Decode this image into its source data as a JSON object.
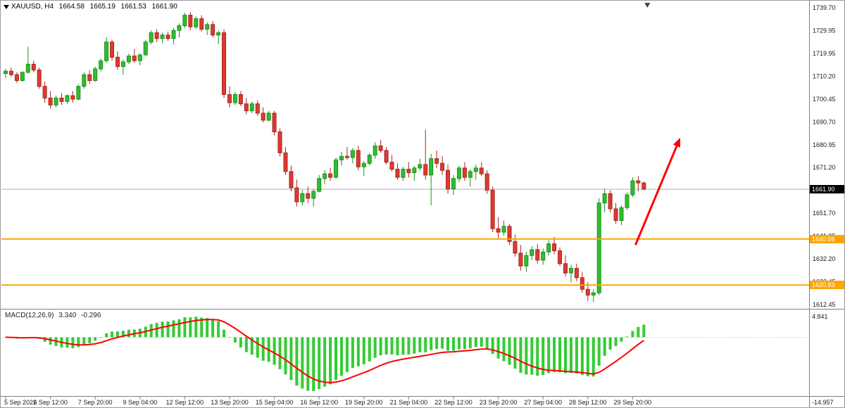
{
  "header": {
    "symbol_timeframe": "XAUUSD, H4",
    "open": "1664.58",
    "high": "1665.19",
    "low": "1661.53",
    "close": "1661.90"
  },
  "price_axis": {
    "top_value": 1739.7,
    "bottom_value": 1612.45,
    "tick_labels": [
      "1739.70",
      "1729.95",
      "1719.95",
      "1710.20",
      "1700.45",
      "1690.70",
      "1680.95",
      "1671.20",
      "1661.45",
      "1651.70",
      "1641.95",
      "1632.20",
      "1622.45",
      "1612.45"
    ],
    "current_price": "1661.90",
    "current_price_value": 1661.9
  },
  "time_axis": {
    "labels": [
      {
        "text": "5 Sep 2022",
        "bar": 0
      },
      {
        "text": "6 Sep 12:00",
        "bar": 8
      },
      {
        "text": "7 Sep 20:00",
        "bar": 16
      },
      {
        "text": "9 Sep 04:00",
        "bar": 24
      },
      {
        "text": "12 Sep 12:00",
        "bar": 32
      },
      {
        "text": "13 Sep 20:00",
        "bar": 40
      },
      {
        "text": "15 Sep 04:00",
        "bar": 48
      },
      {
        "text": "16 Sep 12:00",
        "bar": 56
      },
      {
        "text": "19 Sep 20:00",
        "bar": 64
      },
      {
        "text": "21 Sep 04:00",
        "bar": 72
      },
      {
        "text": "22 Sep 12:00",
        "bar": 80
      },
      {
        "text": "23 Sep 20:00",
        "bar": 88
      },
      {
        "text": "27 Sep 04:00",
        "bar": 96
      },
      {
        "text": "28 Sep 12:00",
        "bar": 104
      },
      {
        "text": "29 Sep 20:00",
        "bar": 112
      }
    ]
  },
  "macd": {
    "label": "MACD(12,26,9)",
    "main_value": "3.340",
    "signal_value": "-0.296",
    "axis_max": "4.841",
    "axis_min": "-14.957",
    "params": [
      12,
      26,
      9
    ]
  },
  "hlines": [
    {
      "price": 1640.56,
      "label": "1640.56",
      "color": "#FFA500"
    },
    {
      "price": 1620.83,
      "label": "1620.83",
      "color": "#FFA500"
    }
  ],
  "arrow": {
    "from_bar": 112.5,
    "from_price": 1638.0,
    "to_bar": 120.5,
    "to_price": 1684.0,
    "color": "#FF0000"
  },
  "colors": {
    "up": "#2FBE2F",
    "up_border": "#1E8F1E",
    "down": "#E03A30",
    "down_border": "#A5261E",
    "hist": "#33CC33",
    "signal": "#FF0000",
    "current_price_line": "#B0B0B0"
  },
  "chart_data": {
    "type": "candlestick",
    "symbol": "XAUUSD",
    "timeframe": "H4",
    "title": "XAUUSD, H4 gold chart with MACD(12,26,9), two orange horizontal levels (1640.56, 1620.83) and a red up trend arrow",
    "price_range_shown": [
      1612.45,
      1739.7
    ],
    "horizontal_lines": [
      1640.56,
      1620.83
    ],
    "macd_axis_range": [
      -14.957,
      4.841
    ],
    "last_ohlc": [
      1664.58,
      1665.19,
      1661.53,
      1661.9
    ],
    "ohlc": [
      [
        1711.5,
        1713.5,
        1709.5,
        1712.5
      ],
      [
        1712.5,
        1714.0,
        1710.0,
        1711.0
      ],
      [
        1711.0,
        1712.0,
        1707.5,
        1708.5
      ],
      [
        1708.5,
        1712.5,
        1708.0,
        1712.0
      ],
      [
        1712.0,
        1723.0,
        1711.5,
        1715.5
      ],
      [
        1715.5,
        1717.0,
        1712.0,
        1713.0
      ],
      [
        1713.0,
        1714.0,
        1705.0,
        1706.0
      ],
      [
        1706.0,
        1708.0,
        1699.0,
        1701.0
      ],
      [
        1701.0,
        1704.0,
        1696.5,
        1698.0
      ],
      [
        1698.0,
        1702.0,
        1697.0,
        1701.0
      ],
      [
        1701.0,
        1703.0,
        1698.0,
        1699.5
      ],
      [
        1699.5,
        1702.5,
        1698.5,
        1702.0
      ],
      [
        1702.0,
        1704.0,
        1699.0,
        1700.5
      ],
      [
        1700.5,
        1707.0,
        1700.0,
        1706.0
      ],
      [
        1706.0,
        1712.0,
        1705.0,
        1711.0
      ],
      [
        1711.0,
        1713.0,
        1707.0,
        1708.5
      ],
      [
        1708.5,
        1714.5,
        1708.0,
        1713.5
      ],
      [
        1713.5,
        1718.0,
        1712.5,
        1717.0
      ],
      [
        1717.0,
        1727.0,
        1716.0,
        1725.0
      ],
      [
        1725.0,
        1726.0,
        1717.0,
        1718.5
      ],
      [
        1718.5,
        1721.0,
        1713.0,
        1714.5
      ],
      [
        1714.5,
        1717.5,
        1711.0,
        1716.5
      ],
      [
        1716.5,
        1720.0,
        1715.5,
        1719.0
      ],
      [
        1719.0,
        1722.0,
        1716.0,
        1717.0
      ],
      [
        1717.0,
        1720.0,
        1715.0,
        1719.5
      ],
      [
        1719.5,
        1726.0,
        1719.0,
        1725.0
      ],
      [
        1725.0,
        1730.0,
        1724.0,
        1729.0
      ],
      [
        1729.0,
        1730.5,
        1725.0,
        1726.5
      ],
      [
        1726.5,
        1729.0,
        1724.5,
        1728.0
      ],
      [
        1728.0,
        1729.5,
        1725.5,
        1726.5
      ],
      [
        1726.5,
        1731.0,
        1724.0,
        1730.0
      ],
      [
        1730.0,
        1733.0,
        1727.0,
        1732.0
      ],
      [
        1732.0,
        1737.5,
        1731.0,
        1736.5
      ],
      [
        1736.5,
        1737.8,
        1730.0,
        1731.5
      ],
      [
        1731.5,
        1736.0,
        1730.5,
        1735.0
      ],
      [
        1735.0,
        1736.5,
        1729.5,
        1730.5
      ],
      [
        1730.5,
        1733.5,
        1728.0,
        1732.5
      ],
      [
        1732.5,
        1734.0,
        1727.0,
        1728.0
      ],
      [
        1728.0,
        1730.0,
        1724.0,
        1729.0
      ],
      [
        1729.0,
        1730.5,
        1701.0,
        1702.5
      ],
      [
        1702.5,
        1706.0,
        1697.0,
        1699.0
      ],
      [
        1699.0,
        1703.5,
        1698.0,
        1702.5
      ],
      [
        1702.5,
        1704.0,
        1697.5,
        1698.5
      ],
      [
        1698.5,
        1701.0,
        1694.0,
        1695.5
      ],
      [
        1695.5,
        1699.5,
        1694.5,
        1698.5
      ],
      [
        1698.5,
        1700.0,
        1693.5,
        1694.5
      ],
      [
        1694.5,
        1697.0,
        1690.5,
        1691.5
      ],
      [
        1691.5,
        1695.5,
        1691.0,
        1694.5
      ],
      [
        1694.5,
        1695.5,
        1685.0,
        1686.5
      ],
      [
        1686.5,
        1688.0,
        1676.0,
        1677.5
      ],
      [
        1677.5,
        1680.0,
        1668.0,
        1669.5
      ],
      [
        1669.5,
        1672.0,
        1661.0,
        1662.5
      ],
      [
        1662.5,
        1666.0,
        1654.5,
        1656.5
      ],
      [
        1656.5,
        1661.5,
        1655.0,
        1660.0
      ],
      [
        1660.0,
        1663.0,
        1656.0,
        1658.0
      ],
      [
        1658.0,
        1662.0,
        1654.5,
        1661.0
      ],
      [
        1661.0,
        1668.0,
        1660.5,
        1666.5
      ],
      [
        1666.5,
        1670.0,
        1664.0,
        1668.5
      ],
      [
        1668.5,
        1671.0,
        1665.5,
        1667.0
      ],
      [
        1667.0,
        1675.5,
        1666.5,
        1674.5
      ],
      [
        1674.5,
        1678.0,
        1672.0,
        1676.0
      ],
      [
        1676.0,
        1680.0,
        1674.5,
        1675.5
      ],
      [
        1675.5,
        1679.5,
        1673.0,
        1678.5
      ],
      [
        1678.5,
        1680.5,
        1670.0,
        1671.5
      ],
      [
        1671.5,
        1674.0,
        1667.5,
        1673.0
      ],
      [
        1673.0,
        1677.5,
        1672.0,
        1676.5
      ],
      [
        1676.5,
        1682.0,
        1675.0,
        1680.5
      ],
      [
        1680.5,
        1683.0,
        1677.5,
        1678.5
      ],
      [
        1678.5,
        1680.0,
        1672.5,
        1673.5
      ],
      [
        1673.5,
        1676.5,
        1669.5,
        1670.5
      ],
      [
        1670.5,
        1673.0,
        1666.0,
        1667.0
      ],
      [
        1667.0,
        1671.5,
        1665.5,
        1670.5
      ],
      [
        1670.5,
        1673.5,
        1667.0,
        1669.0
      ],
      [
        1669.0,
        1672.0,
        1665.5,
        1671.0
      ],
      [
        1671.0,
        1675.0,
        1670.0,
        1672.5
      ],
      [
        1672.5,
        1687.5,
        1666.0,
        1668.0
      ],
      [
        1668.0,
        1677.0,
        1655.0,
        1675.0
      ],
      [
        1675.0,
        1678.5,
        1671.0,
        1673.0
      ],
      [
        1673.0,
        1676.0,
        1668.0,
        1670.0
      ],
      [
        1670.0,
        1672.5,
        1660.0,
        1662.0
      ],
      [
        1662.0,
        1668.0,
        1659.5,
        1666.5
      ],
      [
        1666.5,
        1672.0,
        1665.0,
        1671.0
      ],
      [
        1671.0,
        1673.5,
        1665.5,
        1667.0
      ],
      [
        1667.0,
        1670.5,
        1663.0,
        1669.5
      ],
      [
        1669.5,
        1672.5,
        1666.0,
        1671.0
      ],
      [
        1671.0,
        1673.5,
        1667.5,
        1668.5
      ],
      [
        1668.5,
        1670.0,
        1660.0,
        1661.5
      ],
      [
        1661.5,
        1663.0,
        1643.5,
        1645.0
      ],
      [
        1645.0,
        1650.0,
        1641.0,
        1643.5
      ],
      [
        1643.5,
        1648.5,
        1642.0,
        1646.0
      ],
      [
        1646.0,
        1647.0,
        1638.0,
        1639.5
      ],
      [
        1639.5,
        1642.5,
        1633.0,
        1634.5
      ],
      [
        1634.5,
        1638.0,
        1627.0,
        1629.0
      ],
      [
        1629.0,
        1635.0,
        1626.5,
        1633.5
      ],
      [
        1633.5,
        1637.5,
        1631.5,
        1636.0
      ],
      [
        1636.0,
        1638.5,
        1630.0,
        1631.5
      ],
      [
        1631.5,
        1636.5,
        1629.5,
        1635.0
      ],
      [
        1635.0,
        1640.0,
        1633.5,
        1638.5
      ],
      [
        1638.5,
        1641.5,
        1634.0,
        1635.5
      ],
      [
        1635.5,
        1637.0,
        1629.0,
        1630.0
      ],
      [
        1630.0,
        1633.5,
        1624.5,
        1626.0
      ],
      [
        1626.0,
        1629.5,
        1622.0,
        1628.0
      ],
      [
        1628.0,
        1630.0,
        1622.5,
        1624.0
      ],
      [
        1624.0,
        1626.5,
        1617.5,
        1619.0
      ],
      [
        1619.0,
        1622.0,
        1614.0,
        1616.5
      ],
      [
        1616.5,
        1619.0,
        1613.5,
        1617.5
      ],
      [
        1617.5,
        1658.0,
        1616.5,
        1656.0
      ],
      [
        1656.0,
        1662.0,
        1652.0,
        1660.0
      ],
      [
        1660.0,
        1661.5,
        1652.0,
        1653.5
      ],
      [
        1653.5,
        1656.0,
        1647.0,
        1648.5
      ],
      [
        1648.5,
        1655.0,
        1646.5,
        1654.0
      ],
      [
        1654.0,
        1660.5,
        1653.0,
        1659.5
      ],
      [
        1659.5,
        1667.0,
        1658.5,
        1665.5
      ],
      [
        1665.5,
        1667.5,
        1661.0,
        1664.58
      ],
      [
        1664.58,
        1665.19,
        1661.53,
        1661.9
      ]
    ]
  }
}
